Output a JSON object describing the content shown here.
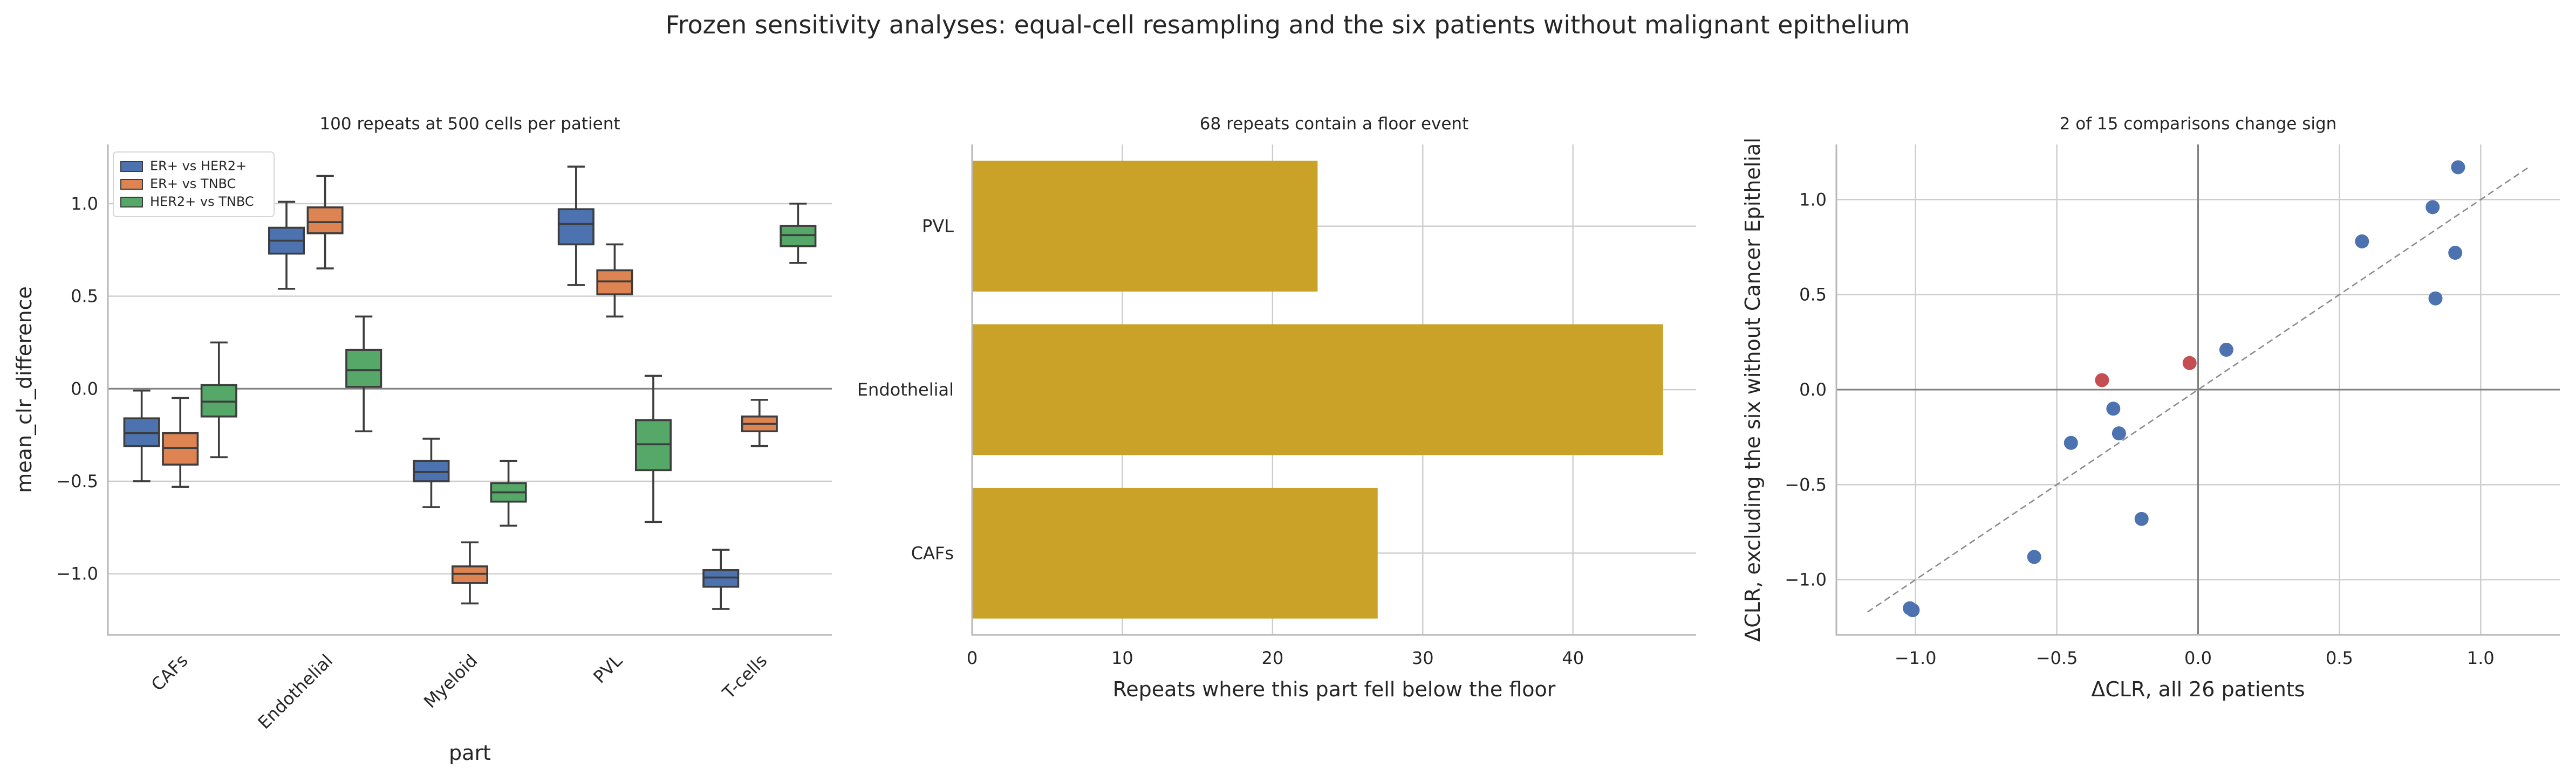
{
  "suptitle": "Frozen sensitivity analyses: equal-cell resampling and the six patients without malignant epithelium",
  "chart_data": [
    {
      "type": "box",
      "title": "100 repeats at 500 cells per patient",
      "xlabel": "part",
      "ylabel": "mean_clr_difference",
      "categories": [
        "CAFs",
        "Endothelial",
        "Myeloid",
        "PVL",
        "T-cells"
      ],
      "ylim": [
        -1.33,
        1.32
      ],
      "yticks": [
        -1.0,
        -0.5,
        0.0,
        0.5,
        1.0
      ],
      "ytick_labels": [
        "−1.0",
        "−0.5",
        "0.0",
        "0.5",
        "1.0"
      ],
      "grid": "horizontal",
      "legend_position": "top-left",
      "series": [
        {
          "name": "ER+ vs HER2+",
          "color": "#4c72b0",
          "boxes": [
            {
              "category": "CAFs",
              "whislo": -0.5,
              "q1": -0.31,
              "med": -0.24,
              "q3": -0.16,
              "whishi": -0.01
            },
            {
              "category": "Endothelial",
              "whislo": 0.54,
              "q1": 0.73,
              "med": 0.8,
              "q3": 0.87,
              "whishi": 1.01
            },
            {
              "category": "Myeloid",
              "whislo": -0.64,
              "q1": -0.5,
              "med": -0.45,
              "q3": -0.39,
              "whishi": -0.27
            },
            {
              "category": "PVL",
              "whislo": 0.56,
              "q1": 0.78,
              "med": 0.89,
              "q3": 0.97,
              "whishi": 1.2
            },
            {
              "category": "T-cells",
              "whislo": -1.19,
              "q1": -1.07,
              "med": -1.02,
              "q3": -0.98,
              "whishi": -0.87
            }
          ]
        },
        {
          "name": "ER+ vs TNBC",
          "color": "#dd8452",
          "boxes": [
            {
              "category": "CAFs",
              "whislo": -0.53,
              "q1": -0.41,
              "med": -0.32,
              "q3": -0.24,
              "whishi": -0.05
            },
            {
              "category": "Endothelial",
              "whislo": 0.65,
              "q1": 0.84,
              "med": 0.9,
              "q3": 0.98,
              "whishi": 1.15
            },
            {
              "category": "Myeloid",
              "whislo": -1.16,
              "q1": -1.05,
              "med": -1.0,
              "q3": -0.96,
              "whishi": -0.83
            },
            {
              "category": "PVL",
              "whislo": 0.39,
              "q1": 0.51,
              "med": 0.58,
              "q3": 0.64,
              "whishi": 0.78
            },
            {
              "category": "T-cells",
              "whislo": -0.31,
              "q1": -0.23,
              "med": -0.19,
              "q3": -0.15,
              "whishi": -0.06
            }
          ]
        },
        {
          "name": "HER2+ vs TNBC",
          "color": "#55a868",
          "boxes": [
            {
              "category": "CAFs",
              "whislo": -0.37,
              "q1": -0.15,
              "med": -0.07,
              "q3": 0.02,
              "whishi": 0.25
            },
            {
              "category": "Endothelial",
              "whislo": -0.23,
              "q1": 0.01,
              "med": 0.1,
              "q3": 0.21,
              "whishi": 0.39
            },
            {
              "category": "Myeloid",
              "whislo": -0.74,
              "q1": -0.61,
              "med": -0.56,
              "q3": -0.51,
              "whishi": -0.39
            },
            {
              "category": "PVL",
              "whislo": -0.72,
              "q1": -0.44,
              "med": -0.3,
              "q3": -0.17,
              "whishi": 0.07
            },
            {
              "category": "T-cells",
              "whislo": 0.68,
              "q1": 0.77,
              "med": 0.83,
              "q3": 0.88,
              "whishi": 1.0
            }
          ]
        }
      ]
    },
    {
      "type": "bar",
      "orientation": "horizontal",
      "title": "68 repeats contain a floor event",
      "xlabel": "Repeats where this part fell below the floor",
      "ylabel": "",
      "categories": [
        "PVL",
        "Endothelial",
        "CAFs"
      ],
      "values": [
        23,
        46,
        27
      ],
      "color": "#c9a227",
      "xlim": [
        0,
        48.2
      ],
      "xticks": [
        0,
        10,
        20,
        30,
        40
      ],
      "grid": "both"
    },
    {
      "type": "scatter",
      "title": "2 of 15 comparisons change sign",
      "xlabel": "ΔCLR, all 26 patients",
      "ylabel": "ΔCLR, excluding the six without Cancer Epithelial",
      "xlim": [
        -1.28,
        1.28
      ],
      "ylim": [
        -1.29,
        1.29
      ],
      "xticks": [
        -1.0,
        -0.5,
        0.0,
        0.5,
        1.0
      ],
      "xtick_labels": [
        "−1.0",
        "−0.5",
        "0.0",
        "0.5",
        "1.0"
      ],
      "yticks": [
        -1.0,
        -0.5,
        0.0,
        0.5,
        1.0
      ],
      "ytick_labels": [
        "−1.0",
        "−0.5",
        "0.0",
        "0.5",
        "1.0"
      ],
      "identity_line": [
        -1.17,
        1.17
      ],
      "grid": "both",
      "points": [
        {
          "x": -1.02,
          "y": -1.15,
          "sign_change": false
        },
        {
          "x": -1.01,
          "y": -1.16,
          "sign_change": false
        },
        {
          "x": -0.58,
          "y": -0.88,
          "sign_change": false
        },
        {
          "x": -0.45,
          "y": -0.28,
          "sign_change": false
        },
        {
          "x": -0.3,
          "y": -0.1,
          "sign_change": false
        },
        {
          "x": -0.28,
          "y": -0.23,
          "sign_change": false
        },
        {
          "x": -0.2,
          "y": -0.68,
          "sign_change": false
        },
        {
          "x": 0.1,
          "y": 0.21,
          "sign_change": false
        },
        {
          "x": 0.58,
          "y": 0.78,
          "sign_change": false
        },
        {
          "x": 0.83,
          "y": 0.96,
          "sign_change": false
        },
        {
          "x": 0.84,
          "y": 0.48,
          "sign_change": false
        },
        {
          "x": 0.91,
          "y": 0.72,
          "sign_change": false
        },
        {
          "x": 0.92,
          "y": 1.17,
          "sign_change": false
        },
        {
          "x": -0.34,
          "y": 0.05,
          "sign_change": true
        },
        {
          "x": -0.03,
          "y": 0.14,
          "sign_change": true
        }
      ],
      "colors": {
        "unchanged": "#4c72b0",
        "sign_change": "#c44e52"
      }
    }
  ]
}
